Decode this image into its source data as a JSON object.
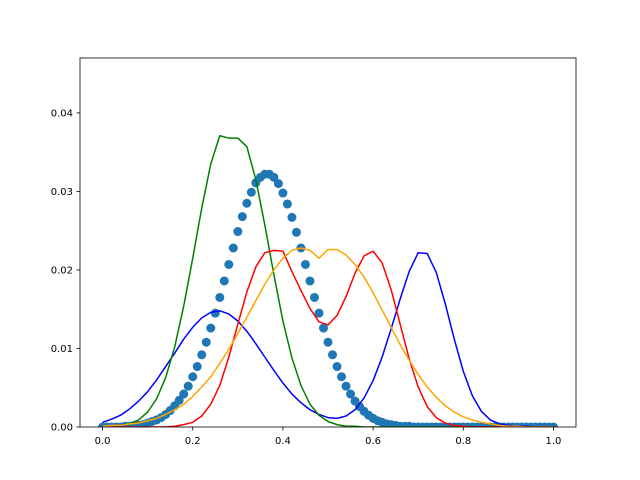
{
  "chart_data": {
    "type": "line",
    "title": "",
    "xlabel": "",
    "ylabel": "",
    "xlim": [
      -0.05,
      1.05
    ],
    "ylim": [
      0.0,
      0.047
    ],
    "grid": false,
    "x_ticks": [
      "0.0",
      "0.2",
      "0.4",
      "0.6",
      "0.8",
      "1.0"
    ],
    "x_tick_values": [
      0.0,
      0.2,
      0.4,
      0.6,
      0.8,
      1.0
    ],
    "y_ticks": [
      "0.00",
      "0.01",
      "0.02",
      "0.03",
      "0.04"
    ],
    "y_tick_values": [
      0.0,
      0.01,
      0.02,
      0.03,
      0.04
    ],
    "series": [
      {
        "kind": "scatter",
        "color": "#1f77b4",
        "x": [
          0.0,
          0.01,
          0.02,
          0.03,
          0.04,
          0.05,
          0.06,
          0.07,
          0.08,
          0.09,
          0.1,
          0.11,
          0.12,
          0.13,
          0.14,
          0.15,
          0.16,
          0.17,
          0.18,
          0.19,
          0.2,
          0.21,
          0.22,
          0.23,
          0.24,
          0.25,
          0.26,
          0.27,
          0.28,
          0.29,
          0.3,
          0.31,
          0.32,
          0.33,
          0.34,
          0.35,
          0.36,
          0.37,
          0.38,
          0.39,
          0.4,
          0.41,
          0.42,
          0.43,
          0.44,
          0.45,
          0.46,
          0.47,
          0.48,
          0.49,
          0.5,
          0.51,
          0.52,
          0.53,
          0.54,
          0.55,
          0.56,
          0.57,
          0.58,
          0.59,
          0.6,
          0.61,
          0.62,
          0.63,
          0.64,
          0.65,
          0.66,
          0.67,
          0.68,
          0.69,
          0.7,
          0.71,
          0.72,
          0.73,
          0.74,
          0.75,
          0.76,
          0.77,
          0.78,
          0.79,
          0.8,
          0.81,
          0.82,
          0.83,
          0.84,
          0.85,
          0.86,
          0.87,
          0.88,
          0.89,
          0.9,
          0.91,
          0.92,
          0.93,
          0.94,
          0.95,
          0.96,
          0.97,
          0.98,
          0.99,
          1.0
        ],
        "y": [
          0.0,
          0.0,
          0.0,
          0.0,
          0.0,
          0.0001,
          0.0001,
          0.0002,
          0.0002,
          0.0003,
          0.0005,
          0.0007,
          0.0009,
          0.0012,
          0.0016,
          0.0021,
          0.0027,
          0.0034,
          0.0042,
          0.0052,
          0.0064,
          0.0077,
          0.0092,
          0.0108,
          0.0126,
          0.0145,
          0.0165,
          0.0186,
          0.0207,
          0.0228,
          0.0249,
          0.0268,
          0.0285,
          0.0299,
          0.0311,
          0.0318,
          0.0322,
          0.0322,
          0.0318,
          0.031,
          0.0298,
          0.0284,
          0.0267,
          0.0248,
          0.0228,
          0.0207,
          0.0186,
          0.0165,
          0.0145,
          0.0126,
          0.0108,
          0.0092,
          0.0077,
          0.0064,
          0.0052,
          0.0042,
          0.0033,
          0.0026,
          0.002,
          0.0015,
          0.0011,
          0.0008,
          0.0006,
          0.0004,
          0.0003,
          0.0002,
          0.0001,
          0.0001,
          0.0001,
          0.0,
          0.0,
          0.0,
          0.0,
          0.0,
          0.0,
          0.0,
          0.0,
          0.0,
          0.0,
          0.0,
          0.0,
          0.0,
          0.0,
          0.0,
          0.0,
          0.0,
          0.0,
          0.0,
          0.0,
          0.0,
          0.0,
          0.0,
          0.0,
          0.0,
          0.0,
          0.0,
          0.0,
          0.0,
          0.0,
          0.0,
          0.0
        ]
      },
      {
        "kind": "line",
        "color": "#0000ff",
        "x": [
          0.0,
          0.02,
          0.04,
          0.06,
          0.08,
          0.1,
          0.12,
          0.14,
          0.16,
          0.18,
          0.2,
          0.22,
          0.24,
          0.26,
          0.28,
          0.3,
          0.32,
          0.34,
          0.36,
          0.38,
          0.4,
          0.42,
          0.44,
          0.46,
          0.48,
          0.5,
          0.52,
          0.54,
          0.56,
          0.58,
          0.6,
          0.62,
          0.64,
          0.66,
          0.68,
          0.7,
          0.72,
          0.74,
          0.76,
          0.78,
          0.8,
          0.82,
          0.84,
          0.86,
          0.88,
          0.9,
          0.92,
          0.94,
          0.96,
          0.98,
          1.0
        ],
        "y": [
          0.0006,
          0.001,
          0.0015,
          0.0023,
          0.0033,
          0.0045,
          0.006,
          0.0077,
          0.0094,
          0.0112,
          0.0127,
          0.0139,
          0.0146,
          0.0148,
          0.0144,
          0.0135,
          0.0122,
          0.0106,
          0.0089,
          0.0072,
          0.0056,
          0.0042,
          0.0031,
          0.0022,
          0.0016,
          0.0012,
          0.0011,
          0.0014,
          0.0022,
          0.0037,
          0.0059,
          0.0089,
          0.0125,
          0.0163,
          0.0198,
          0.0222,
          0.0221,
          0.0197,
          0.0157,
          0.0112,
          0.0071,
          0.004,
          0.002,
          0.0009,
          0.0004,
          0.0002,
          0.0001,
          0.0001,
          0.0,
          0.0,
          0.0
        ]
      },
      {
        "kind": "line",
        "color": "#008000",
        "x": [
          0.0,
          0.02,
          0.04,
          0.06,
          0.08,
          0.1,
          0.12,
          0.14,
          0.16,
          0.18,
          0.2,
          0.22,
          0.24,
          0.26,
          0.28,
          0.3,
          0.32,
          0.34,
          0.36,
          0.38,
          0.4,
          0.42,
          0.44,
          0.46,
          0.48,
          0.5,
          0.52,
          0.54,
          0.56,
          0.58,
          0.6,
          0.62,
          0.64,
          0.66,
          0.68,
          0.7,
          0.72,
          0.74,
          0.76,
          0.78,
          0.8,
          0.82,
          0.84,
          0.86,
          0.88,
          0.9,
          0.92,
          0.94,
          0.96,
          0.98,
          1.0
        ],
        "y": [
          0.0,
          0.0001,
          0.0002,
          0.0004,
          0.0009,
          0.0019,
          0.0036,
          0.0063,
          0.0102,
          0.0154,
          0.0215,
          0.0279,
          0.0335,
          0.0371,
          0.0368,
          0.0368,
          0.0357,
          0.0315,
          0.0257,
          0.0194,
          0.0135,
          0.0088,
          0.0053,
          0.0029,
          0.0015,
          0.0007,
          0.0003,
          0.0001,
          0.0001,
          0.0,
          0.0,
          0.0,
          0.0,
          0.0,
          0.0,
          0.0,
          0.0,
          0.0,
          0.0,
          0.0,
          0.0,
          0.0,
          0.0,
          0.0,
          0.0,
          0.0,
          0.0,
          0.0,
          0.0,
          0.0,
          0.0
        ]
      },
      {
        "kind": "line",
        "color": "#ff0000",
        "x": [
          0.0,
          0.02,
          0.04,
          0.06,
          0.08,
          0.1,
          0.12,
          0.14,
          0.16,
          0.18,
          0.2,
          0.22,
          0.24,
          0.26,
          0.28,
          0.3,
          0.32,
          0.34,
          0.36,
          0.38,
          0.4,
          0.42,
          0.44,
          0.46,
          0.48,
          0.5,
          0.52,
          0.54,
          0.56,
          0.58,
          0.6,
          0.62,
          0.64,
          0.66,
          0.68,
          0.7,
          0.72,
          0.74,
          0.76,
          0.78,
          0.8,
          0.82,
          0.84,
          0.86,
          0.88,
          0.9,
          0.92,
          0.94,
          0.96,
          0.98,
          1.0
        ],
        "y": [
          0.0,
          0.0,
          0.0,
          0.0,
          0.0,
          0.0,
          0.0,
          0.0,
          0.0001,
          0.0003,
          0.0006,
          0.0014,
          0.0029,
          0.0053,
          0.0089,
          0.0131,
          0.0172,
          0.0204,
          0.0222,
          0.0225,
          0.0224,
          0.0198,
          0.0174,
          0.0151,
          0.0134,
          0.013,
          0.0142,
          0.0166,
          0.0196,
          0.0218,
          0.0224,
          0.0209,
          0.0175,
          0.0131,
          0.0087,
          0.0051,
          0.0026,
          0.0012,
          0.0005,
          0.0002,
          0.0001,
          0.0,
          0.0,
          0.0,
          0.0,
          0.0,
          0.0,
          0.0,
          0.0,
          0.0,
          0.0
        ]
      },
      {
        "kind": "line",
        "color": "#ffa500",
        "x": [
          0.0,
          0.02,
          0.04,
          0.06,
          0.08,
          0.1,
          0.12,
          0.14,
          0.16,
          0.18,
          0.2,
          0.22,
          0.24,
          0.26,
          0.28,
          0.3,
          0.32,
          0.34,
          0.36,
          0.38,
          0.4,
          0.42,
          0.44,
          0.46,
          0.48,
          0.5,
          0.52,
          0.54,
          0.56,
          0.58,
          0.6,
          0.62,
          0.64,
          0.66,
          0.68,
          0.7,
          0.72,
          0.74,
          0.76,
          0.78,
          0.8,
          0.82,
          0.84,
          0.86,
          0.88,
          0.9,
          0.92,
          0.94,
          0.96,
          0.98,
          1.0
        ],
        "y": [
          0.0001,
          0.0002,
          0.0002,
          0.0004,
          0.0005,
          0.0008,
          0.0011,
          0.0016,
          0.0022,
          0.0029,
          0.0039,
          0.0051,
          0.0064,
          0.0081,
          0.0099,
          0.0119,
          0.014,
          0.0161,
          0.0182,
          0.02,
          0.0215,
          0.0225,
          0.0228,
          0.0225,
          0.0215,
          0.0226,
          0.0226,
          0.0219,
          0.0207,
          0.0191,
          0.0171,
          0.0149,
          0.0127,
          0.0105,
          0.0085,
          0.0067,
          0.0051,
          0.0038,
          0.0027,
          0.0019,
          0.0013,
          0.0009,
          0.0006,
          0.0004,
          0.0002,
          0.0001,
          0.0001,
          0.0,
          0.0,
          0.0,
          0.0
        ]
      }
    ]
  }
}
